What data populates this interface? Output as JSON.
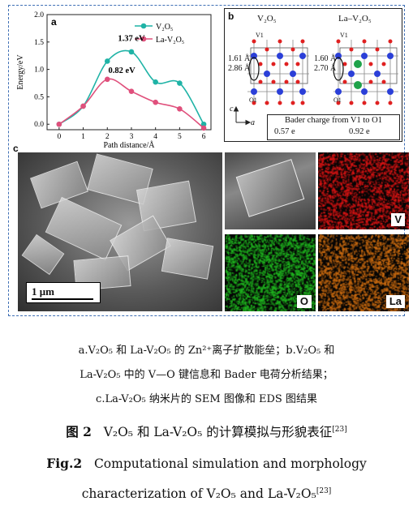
{
  "panel_a": {
    "letter": "a",
    "chart_data": {
      "type": "line",
      "xlabel": "Path distance/Å",
      "ylabel": "Energy/eV",
      "xlim": [
        -0.5,
        6.3
      ],
      "ylim": [
        -0.1,
        2.0
      ],
      "x_ticks": [
        "0",
        "1",
        "2",
        "3",
        "4",
        "5",
        "6"
      ],
      "y_ticks": [
        "0.0",
        "0.5",
        "1.0",
        "1.5",
        "2.0"
      ],
      "legend_position": "top-right",
      "series": [
        {
          "name": "V₂O₅",
          "color": "#1fb3a6",
          "x": [
            0,
            1,
            2,
            3,
            4,
            5,
            6
          ],
          "y": [
            0.0,
            0.33,
            1.15,
            1.32,
            0.77,
            0.75,
            0.0
          ]
        },
        {
          "name": "La-V₂O₅",
          "color": "#e0507c",
          "x": [
            0,
            1,
            2,
            3,
            4,
            5,
            6
          ],
          "y": [
            0.0,
            0.33,
            0.82,
            0.6,
            0.4,
            0.28,
            -0.07
          ]
        }
      ],
      "annotations": [
        "1.37 eV",
        "0.82 eV"
      ]
    }
  },
  "panel_b": {
    "letter": "b",
    "left_title": "V₂O₅",
    "right_title": "La–V₂O₅",
    "left_bonds": [
      "1.61 Å",
      "2.86 Å"
    ],
    "right_bonds": [
      "1.60 Å",
      "2.70 Å"
    ],
    "atom_labels": [
      "V1",
      "O1"
    ],
    "axis_c": "c",
    "axis_a": "a",
    "bader_title": "Bader charge from V1 to O1",
    "bader_left": "0.57 e",
    "bader_right": "0.92 e"
  },
  "panel_c": {
    "letter": "c",
    "scale_bar": "1 μm",
    "tiles": [
      {
        "label": "V",
        "color": "#d81414"
      },
      {
        "label": "O",
        "color": "#1fb51f"
      },
      {
        "label": "La",
        "color": "#c96a10"
      }
    ]
  },
  "caption": {
    "cn_line1": "a.V₂O₅ 和 La-V₂O₅ 的 Zn²⁺离子扩散能垒；b.V₂O₅ 和",
    "cn_line2": "La-V₂O₅ 中的 V—O 键信息和 Bader 电荷分析结果；",
    "cn_line3": "c.La-V₂O₅ 纳米片的 SEM 图像和 EDS 图结果",
    "cn_fig_label": "图 2",
    "cn_title": "V₂O₅ 和 La-V₂O₅ 的计算模拟与形貌表征",
    "cn_ref": "[23]",
    "en_fig_label": "Fig.2",
    "en_title_1": "Computational simulation and morphology",
    "en_title_2": "characterization of V₂O₅ and La-V₂O₅",
    "en_ref": "[23]"
  }
}
